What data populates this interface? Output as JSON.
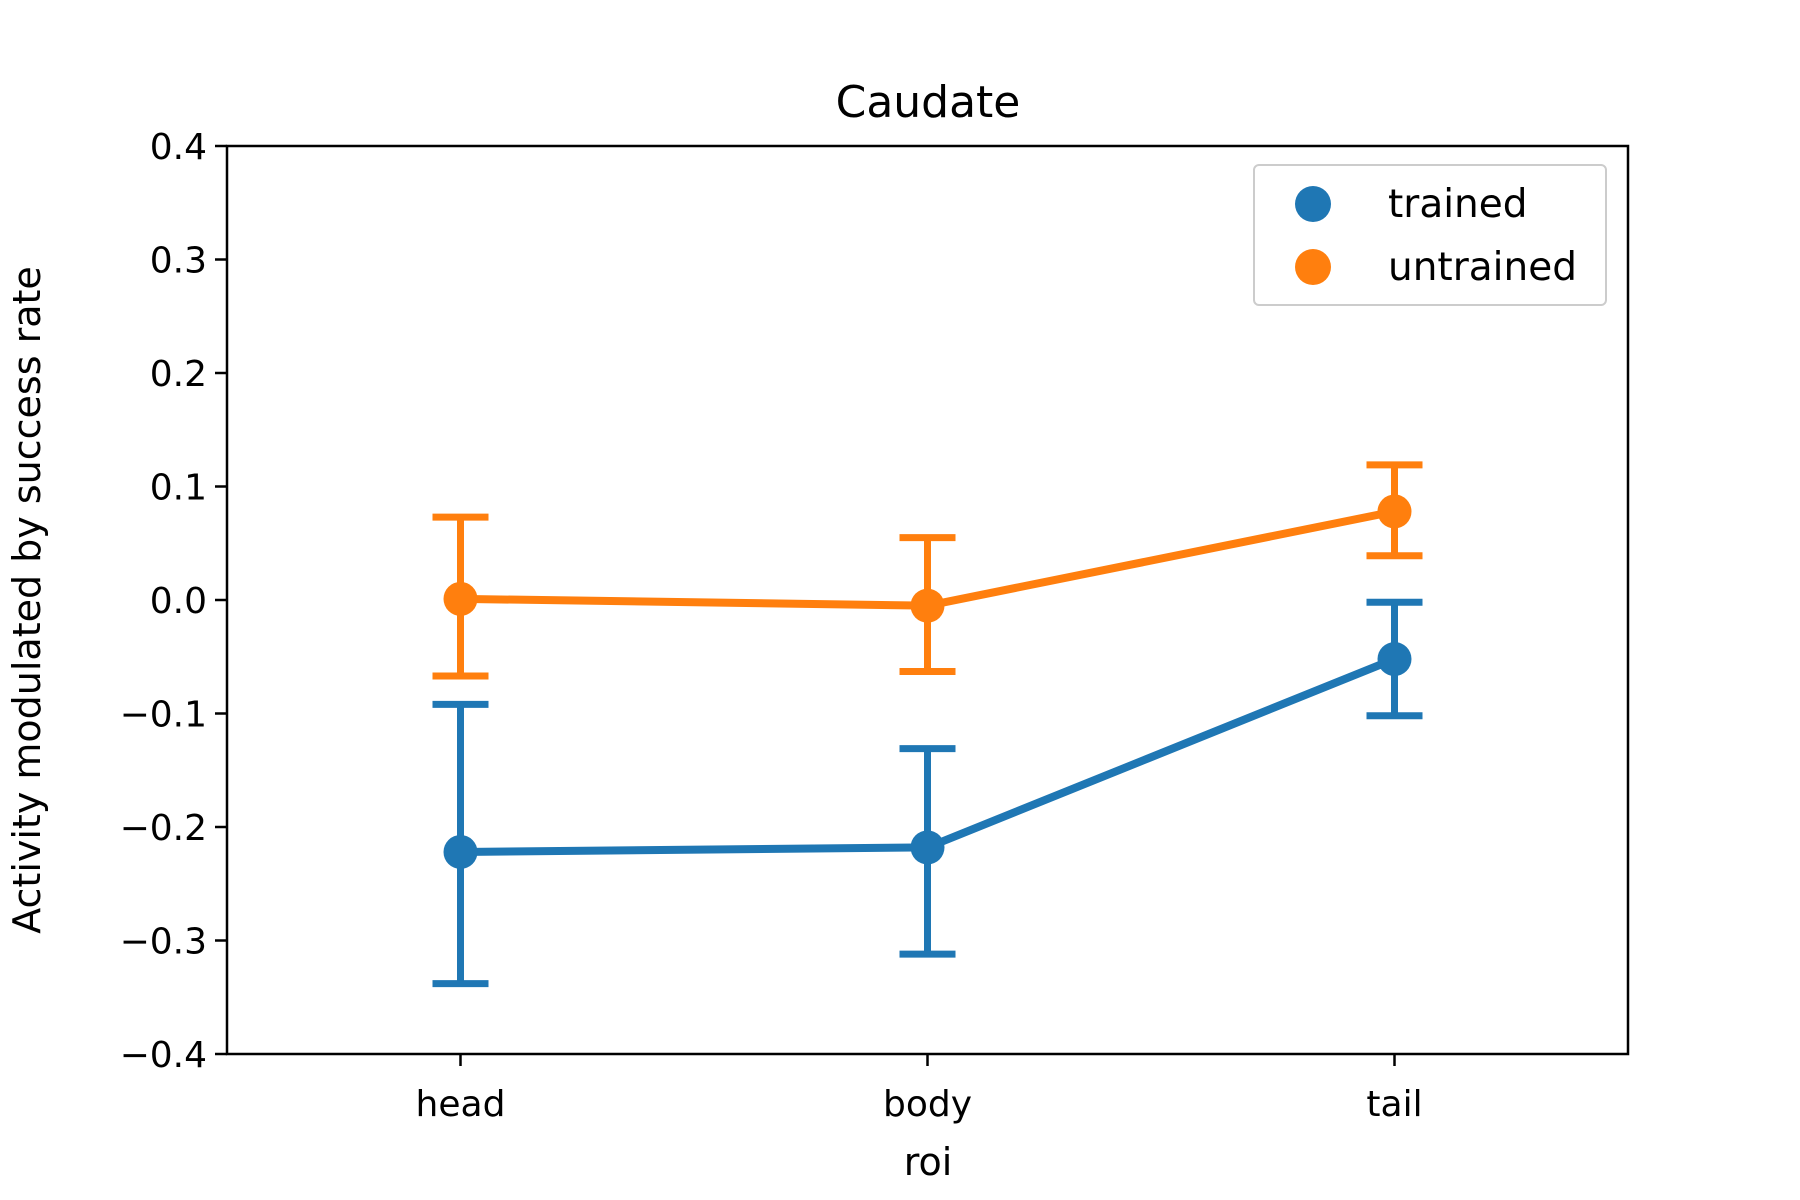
{
  "chart_data": {
    "type": "line",
    "title": "Caudate",
    "xlabel": "roi",
    "ylabel": "Activity modulated by success rate",
    "categories": [
      "head",
      "body",
      "tail"
    ],
    "ylim": [
      -0.4,
      0.4
    ],
    "yticks": [
      {
        "value": 0.4,
        "label": "0.4"
      },
      {
        "value": 0.3,
        "label": "0.3"
      },
      {
        "value": 0.2,
        "label": "0.2"
      },
      {
        "value": 0.1,
        "label": "0.1"
      },
      {
        "value": 0.0,
        "label": "0.0"
      },
      {
        "value": -0.1,
        "label": "−0.1"
      },
      {
        "value": -0.2,
        "label": "−0.2"
      },
      {
        "value": -0.3,
        "label": "−0.3"
      },
      {
        "value": -0.4,
        "label": "−0.4"
      }
    ],
    "grid": false,
    "legend_position": "top-right",
    "series": [
      {
        "name": "trained",
        "color": "#1f77b4",
        "values": [
          -0.222,
          -0.218,
          -0.052
        ],
        "err_low": [
          -0.338,
          -0.312,
          -0.102
        ],
        "err_high": [
          -0.092,
          -0.131,
          -0.002
        ]
      },
      {
        "name": "untrained",
        "color": "#ff7f0e",
        "values": [
          0.001,
          -0.005,
          0.078
        ],
        "err_low": [
          -0.067,
          -0.063,
          0.039
        ],
        "err_high": [
          0.073,
          0.055,
          0.119
        ]
      }
    ]
  }
}
